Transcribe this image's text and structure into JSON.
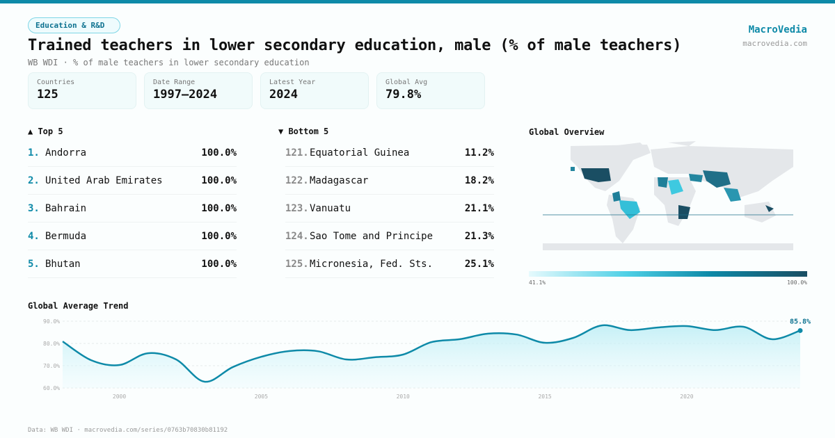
{
  "header": {
    "tag": "Education & R&D",
    "title": "Trained teachers in lower secondary education, male (% of male teachers)",
    "subtitle": "WB WDI · % of male teachers in lower secondary education",
    "brand": "MacroVedia",
    "brand_url": "macrovedia.com"
  },
  "stats": [
    {
      "label": "Countries",
      "value": "125"
    },
    {
      "label": "Date Range",
      "value": "1997–2024"
    },
    {
      "label": "Latest Year",
      "value": "2024"
    },
    {
      "label": "Global Avg",
      "value": "79.8%"
    }
  ],
  "top5": {
    "title": "▲ Top 5",
    "items": [
      {
        "rank": "1.",
        "name": "Andorra",
        "value": "100.0%"
      },
      {
        "rank": "2.",
        "name": "United Arab Emirates",
        "value": "100.0%"
      },
      {
        "rank": "3.",
        "name": "Bahrain",
        "value": "100.0%"
      },
      {
        "rank": "4.",
        "name": "Bermuda",
        "value": "100.0%"
      },
      {
        "rank": "5.",
        "name": "Bhutan",
        "value": "100.0%"
      }
    ]
  },
  "bottom5": {
    "title": "▼ Bottom 5",
    "items": [
      {
        "rank": "121.",
        "name": "Equatorial Guinea",
        "value": "11.2%"
      },
      {
        "rank": "122.",
        "name": "Madagascar",
        "value": "18.2%"
      },
      {
        "rank": "123.",
        "name": "Vanuatu",
        "value": "21.1%"
      },
      {
        "rank": "124.",
        "name": "Sao Tome and Principe",
        "value": "21.3%"
      },
      {
        "rank": "125.",
        "name": "Micronesia, Fed. Sts.",
        "value": "25.1%"
      }
    ]
  },
  "map": {
    "title": "Global Overview",
    "legend_min": "41.1%",
    "legend_max": "100.0%",
    "color_low": "#a5ecf7",
    "color_high": "#1a4e63"
  },
  "footer": "Data: WB WDI · macrovedia.com/series/0763b70830b81192",
  "chart_data": {
    "type": "area",
    "title": "Global Average Trend",
    "x": [
      1998,
      1999,
      2000,
      2001,
      2002,
      2003,
      2004,
      2005,
      2006,
      2007,
      2008,
      2009,
      2010,
      2011,
      2012,
      2013,
      2014,
      2015,
      2016,
      2017,
      2018,
      2019,
      2020,
      2021,
      2022,
      2023,
      2024
    ],
    "values": [
      80.9,
      72.5,
      70.3,
      75.6,
      72.8,
      62.8,
      69.4,
      74.0,
      76.6,
      76.5,
      72.8,
      73.8,
      75.0,
      80.6,
      81.9,
      84.4,
      84.0,
      80.3,
      82.5,
      88.1,
      86.0,
      87.2,
      87.8,
      86.0,
      87.5,
      81.9,
      85.8
    ],
    "ylim": [
      60,
      90
    ],
    "yticks": [
      "60.0%",
      "70.0%",
      "80.0%",
      "90.0%"
    ],
    "ytick_values": [
      60,
      70,
      80,
      90
    ],
    "xticks": [
      2000,
      2005,
      2010,
      2015,
      2020
    ],
    "last_label": "85.8%",
    "color": "#0e8aa8"
  }
}
